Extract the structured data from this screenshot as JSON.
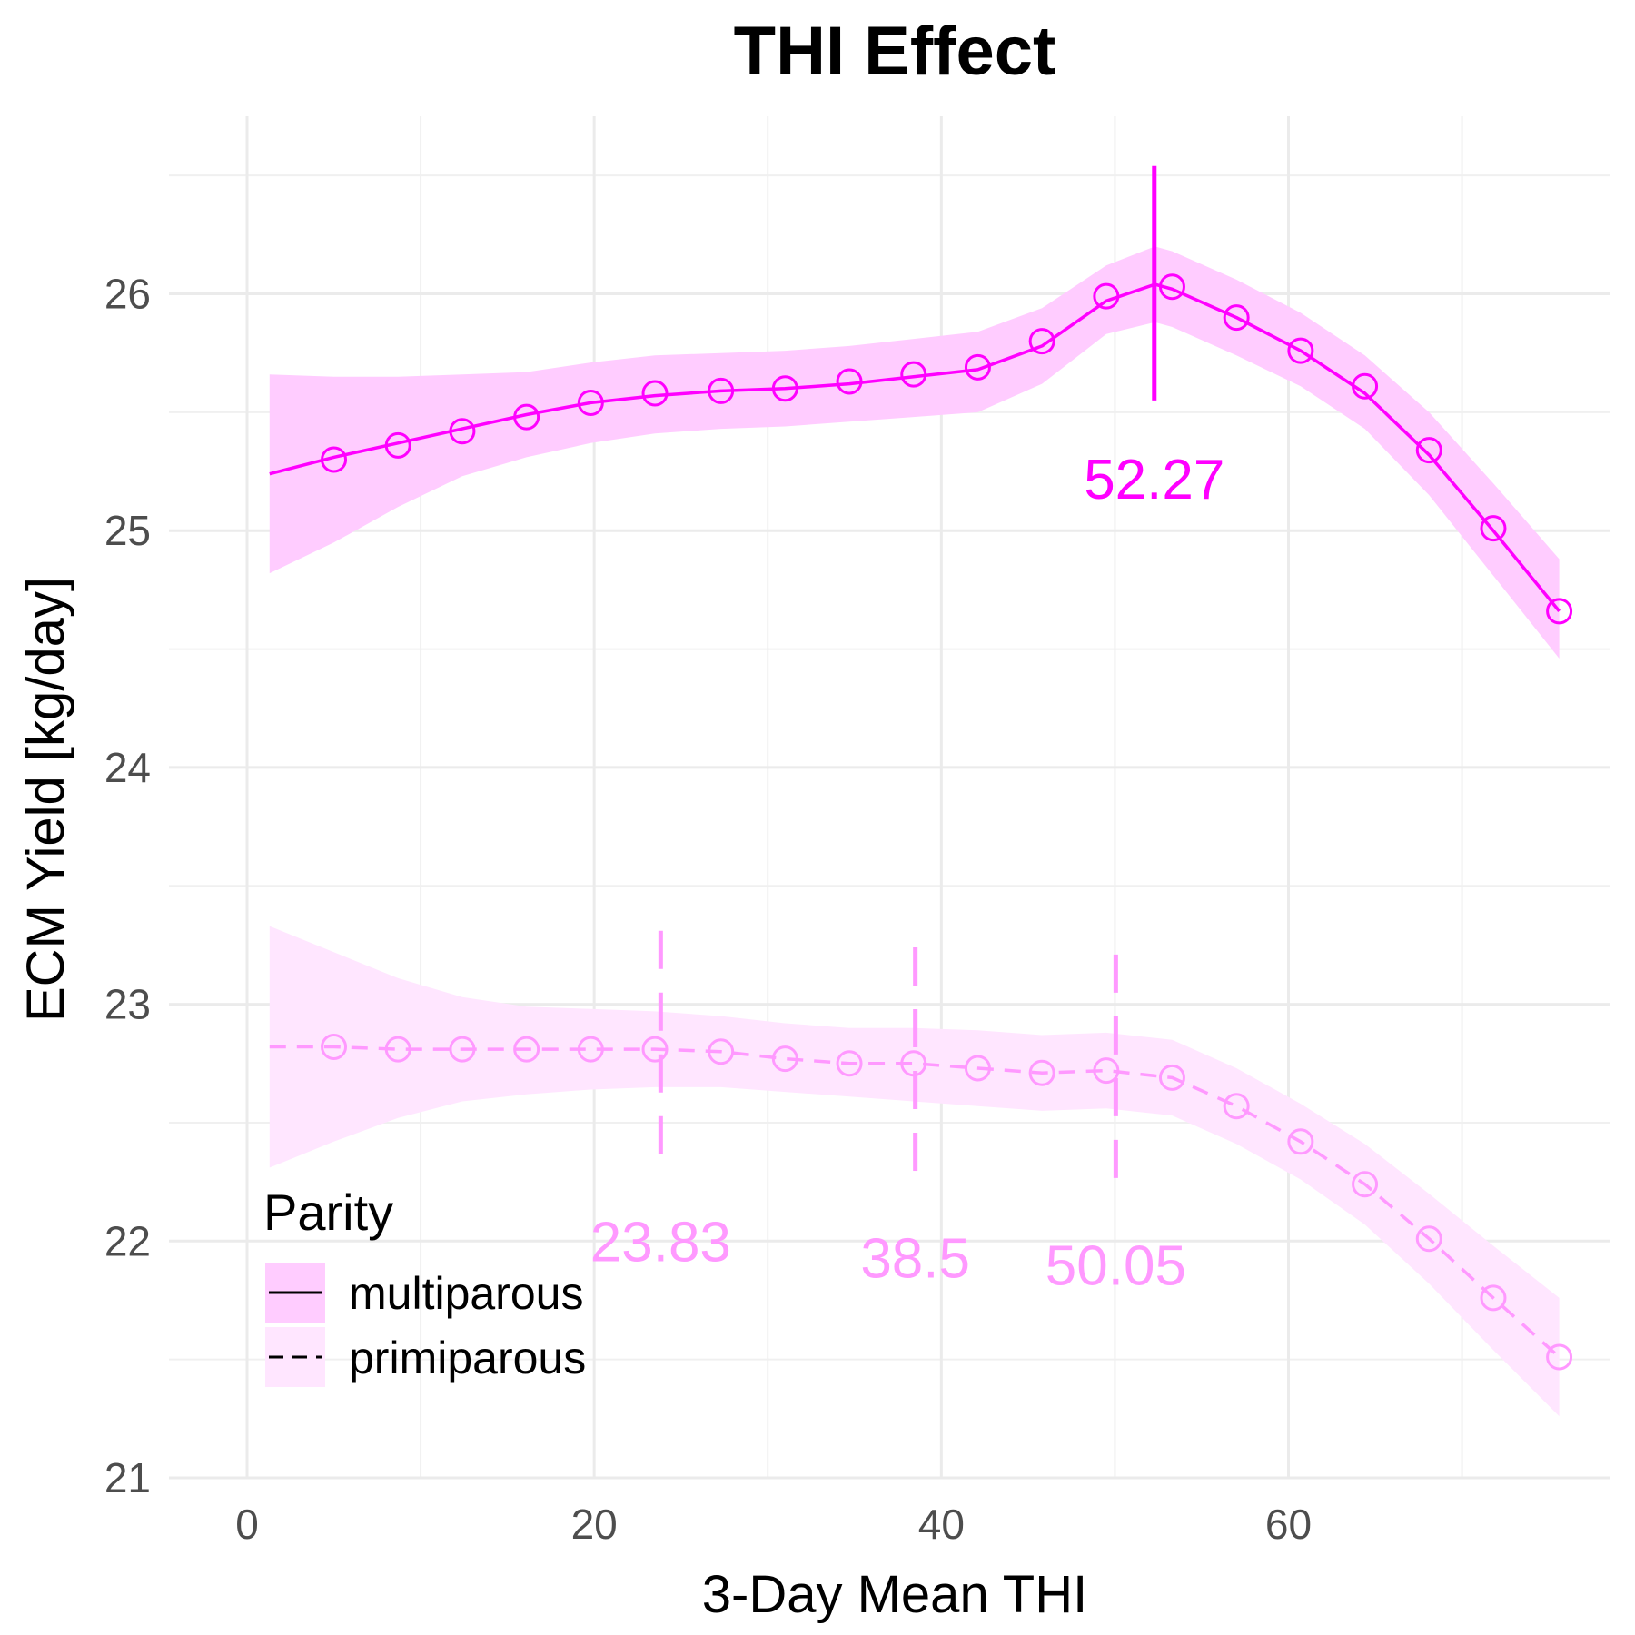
{
  "chart_data": {
    "type": "line",
    "title": "THI Effect",
    "xlabel": "3-Day Mean THI",
    "ylabel": "ECM Yield [kg/day]",
    "xlim": [
      -4.5,
      78.5
    ],
    "ylim": [
      21,
      26.75
    ],
    "x_ticks": [
      0,
      20,
      40,
      60
    ],
    "y_ticks": [
      21,
      22,
      23,
      24,
      25,
      26
    ],
    "grid": true,
    "legend": {
      "title": "Parity",
      "position": "bottom-left-inside",
      "entries": [
        "multiparous",
        "primiparous"
      ]
    },
    "series": [
      {
        "name": "multiparous",
        "color": "#ff00ff",
        "band_color": "#ffccff",
        "linestyle": "solid",
        "curve_x": [
          1.3,
          5,
          8.7,
          12.4,
          16.1,
          19.8,
          23.5,
          27.3,
          31,
          34.7,
          38.4,
          42.1,
          45.8,
          49.5,
          52.3,
          53.3,
          57,
          60.7,
          64.4,
          68.1,
          71.8,
          75.6
        ],
        "curve_y": [
          25.24,
          25.31,
          25.37,
          25.43,
          25.49,
          25.54,
          25.57,
          25.59,
          25.6,
          25.62,
          25.65,
          25.68,
          25.78,
          25.97,
          26.04,
          26.02,
          25.9,
          25.76,
          25.58,
          25.32,
          25.0,
          24.66
        ],
        "band_lower": [
          24.82,
          24.95,
          25.1,
          25.23,
          25.31,
          25.37,
          25.41,
          25.43,
          25.44,
          25.46,
          25.48,
          25.5,
          25.62,
          25.83,
          25.88,
          25.86,
          25.74,
          25.61,
          25.43,
          25.15,
          24.81,
          24.46
        ],
        "band_upper": [
          25.66,
          25.65,
          25.65,
          25.66,
          25.67,
          25.71,
          25.74,
          25.75,
          25.76,
          25.78,
          25.81,
          25.84,
          25.94,
          26.12,
          26.2,
          26.18,
          26.06,
          25.92,
          25.74,
          25.5,
          25.2,
          24.88
        ],
        "marker_x": [
          5,
          8.7,
          12.4,
          16.1,
          19.8,
          23.5,
          27.3,
          31,
          34.7,
          38.4,
          42.1,
          45.8,
          49.5,
          53.3,
          57,
          60.7,
          64.4,
          68.1,
          71.8,
          75.6
        ],
        "marker_y": [
          25.3,
          25.36,
          25.42,
          25.48,
          25.54,
          25.58,
          25.59,
          25.6,
          25.63,
          25.66,
          25.69,
          25.8,
          25.99,
          26.03,
          25.9,
          25.76,
          25.61,
          25.34,
          25.01,
          24.66
        ],
        "breakpoints": [
          {
            "x": 52.27,
            "label": "52.27",
            "y_low": 25.55,
            "y_high": 26.54,
            "label_y": 25.22
          }
        ]
      },
      {
        "name": "primiparous",
        "color": "#ff99ff",
        "band_color": "#ffe6ff",
        "linestyle": "dashed",
        "curve_x": [
          1.3,
          5,
          8.7,
          12.4,
          16.1,
          19.8,
          23.5,
          27.3,
          31,
          34.7,
          38.4,
          42.1,
          45.8,
          49.5,
          53.3,
          57,
          60.7,
          64.4,
          68.1,
          71.8,
          75.6
        ],
        "curve_y": [
          22.82,
          22.82,
          22.81,
          22.81,
          22.81,
          22.81,
          22.81,
          22.8,
          22.77,
          22.75,
          22.75,
          22.73,
          22.71,
          22.72,
          22.69,
          22.57,
          22.42,
          22.24,
          22.01,
          21.76,
          21.51
        ],
        "band_lower": [
          22.31,
          22.42,
          22.52,
          22.59,
          22.62,
          22.64,
          22.65,
          22.65,
          22.63,
          22.61,
          22.59,
          22.57,
          22.55,
          22.56,
          22.53,
          22.41,
          22.26,
          22.07,
          21.82,
          21.54,
          21.26
        ],
        "band_upper": [
          23.33,
          23.22,
          23.11,
          23.03,
          22.99,
          22.98,
          22.97,
          22.95,
          22.92,
          22.9,
          22.9,
          22.89,
          22.87,
          22.88,
          22.85,
          22.73,
          22.58,
          22.41,
          22.2,
          21.98,
          21.76
        ],
        "marker_x": [
          5,
          8.7,
          12.4,
          16.1,
          19.8,
          23.5,
          27.3,
          31,
          34.7,
          38.4,
          42.1,
          45.8,
          49.5,
          53.3,
          57,
          60.7,
          64.4,
          68.1,
          71.8,
          75.6
        ],
        "marker_y": [
          22.82,
          22.81,
          22.81,
          22.81,
          22.81,
          22.81,
          22.8,
          22.77,
          22.75,
          22.75,
          22.73,
          22.71,
          22.72,
          22.69,
          22.57,
          22.42,
          22.24,
          22.01,
          21.76,
          21.51
        ],
        "breakpoints": [
          {
            "x": 23.83,
            "label": "23.83",
            "y_low": 22.32,
            "y_high": 23.31,
            "label_y": 22.0
          },
          {
            "x": 38.5,
            "label": "38.5",
            "y_low": 22.25,
            "y_high": 23.24,
            "label_y": 21.93
          },
          {
            "x": 50.05,
            "label": "50.05",
            "y_low": 22.22,
            "y_high": 23.21,
            "label_y": 21.9
          }
        ]
      }
    ]
  }
}
